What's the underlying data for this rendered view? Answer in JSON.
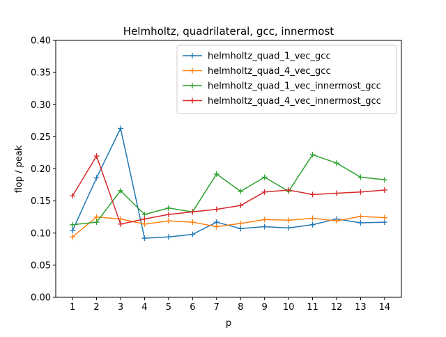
{
  "chart_data": {
    "type": "line",
    "title": "Helmholtz, quadrilateral, gcc, innermost",
    "xlabel": "p",
    "ylabel": "flop / peak",
    "x": [
      1,
      2,
      3,
      4,
      5,
      6,
      7,
      8,
      9,
      10,
      11,
      12,
      13,
      14
    ],
    "xlim": [
      0.3,
      14.7
    ],
    "ylim": [
      0,
      0.4
    ],
    "yticks": [
      "0.00",
      "0.05",
      "0.10",
      "0.15",
      "0.20",
      "0.25",
      "0.30",
      "0.35",
      "0.40"
    ],
    "grid": false,
    "legend_position": "upper right",
    "marker": "+",
    "series": [
      {
        "name": "helmholtz_quad_1_vec_gcc",
        "color": "#1f77b4",
        "values": [
          0.104,
          0.186,
          0.263,
          0.092,
          0.094,
          0.098,
          0.117,
          0.107,
          0.11,
          0.108,
          0.113,
          0.122,
          0.116,
          0.117
        ]
      },
      {
        "name": "helmholtz_quad_4_vec_gcc",
        "color": "#ff7f0e",
        "values": [
          0.094,
          0.125,
          0.122,
          0.114,
          0.119,
          0.117,
          0.11,
          0.115,
          0.121,
          0.12,
          0.123,
          0.119,
          0.126,
          0.124
        ]
      },
      {
        "name": "helmholtz_quad_1_vec_innermost_gcc",
        "color": "#2ca02c",
        "values": [
          0.113,
          0.117,
          0.166,
          0.129,
          0.139,
          0.133,
          0.192,
          0.165,
          0.187,
          0.165,
          0.222,
          0.209,
          0.187,
          0.183
        ]
      },
      {
        "name": "helmholtz_quad_4_vec_innermost_gcc",
        "color": "#d62728",
        "values": [
          0.158,
          0.22,
          0.114,
          0.122,
          0.129,
          0.133,
          0.137,
          0.143,
          0.164,
          0.167,
          0.16,
          0.162,
          0.164,
          0.167
        ]
      }
    ]
  }
}
